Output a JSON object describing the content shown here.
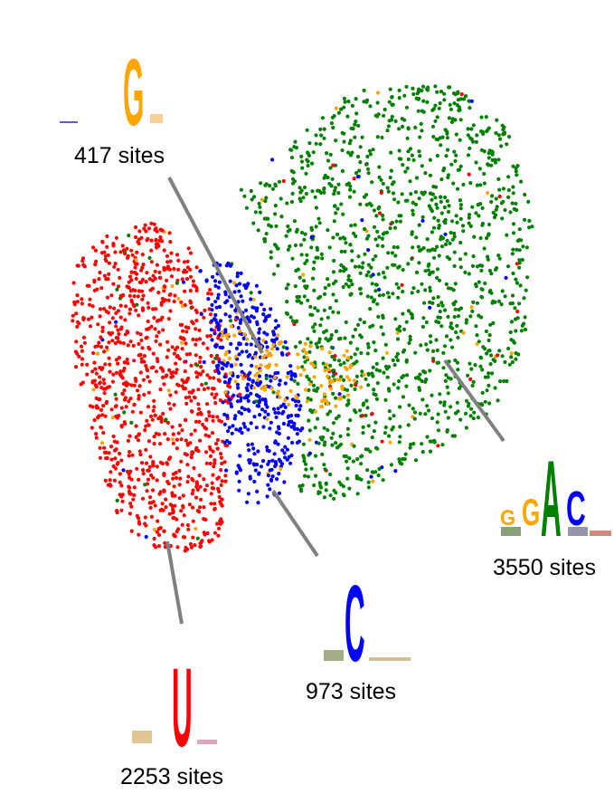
{
  "chart_data": {
    "type": "scatter",
    "title": "",
    "xlabel": "",
    "ylabel": "",
    "grid": false,
    "legend": "none",
    "clusters": [
      {
        "id": "G",
        "nucleotide": "G",
        "color": "#FFA500",
        "sites": 417,
        "label": "417 sites",
        "logo": "G"
      },
      {
        "id": "U",
        "nucleotide": "U",
        "color": "#FF0000",
        "sites": 2253,
        "label": "2253 sites",
        "logo": "U"
      },
      {
        "id": "C",
        "nucleotide": "C",
        "color": "#0000FF",
        "sites": 973,
        "label": "973 sites",
        "logo": "C"
      },
      {
        "id": "GGAC",
        "nucleotide": "GGAC",
        "color": "#008000",
        "sites": 3550,
        "label": "3550 sites",
        "logo": "GGAC"
      }
    ],
    "logo_colors": {
      "A": "#008000",
      "C": "#0000FF",
      "G": "#FFA500",
      "U": "#FF0000"
    }
  }
}
